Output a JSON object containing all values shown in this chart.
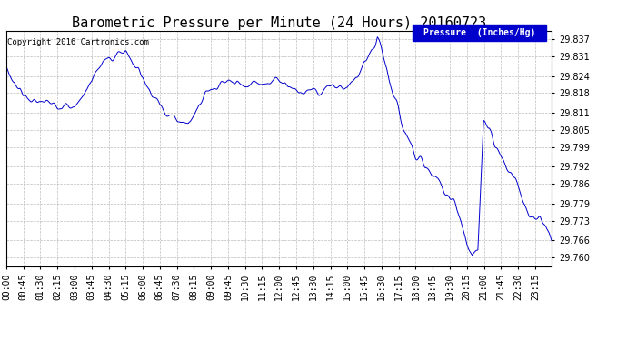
{
  "title": "Barometric Pressure per Minute (24 Hours) 20160723",
  "copyright": "Copyright 2016 Cartronics.com",
  "legend_label": "Pressure  (Inches/Hg)",
  "legend_bg": "#0000cc",
  "legend_fg": "#ffffff",
  "line_color": "#0000cc",
  "background_color": "#ffffff",
  "grid_color": "#aaaaaa",
  "yticks": [
    29.76,
    29.766,
    29.773,
    29.779,
    29.786,
    29.792,
    29.799,
    29.805,
    29.811,
    29.818,
    29.824,
    29.831,
    29.837
  ],
  "ylim": [
    29.757,
    29.84
  ],
  "xtick_labels": [
    "00:00",
    "00:45",
    "01:30",
    "02:15",
    "03:00",
    "03:45",
    "04:30",
    "05:15",
    "06:00",
    "06:45",
    "07:30",
    "08:15",
    "09:00",
    "09:45",
    "10:30",
    "11:15",
    "12:00",
    "12:45",
    "13:30",
    "14:15",
    "15:00",
    "15:45",
    "16:30",
    "17:15",
    "18:00",
    "18:45",
    "19:30",
    "20:15",
    "21:00",
    "21:45",
    "22:30",
    "23:15"
  ],
  "title_fontsize": 11,
  "tick_fontsize": 7,
  "copyright_fontsize": 6.5,
  "legend_fontsize": 7
}
